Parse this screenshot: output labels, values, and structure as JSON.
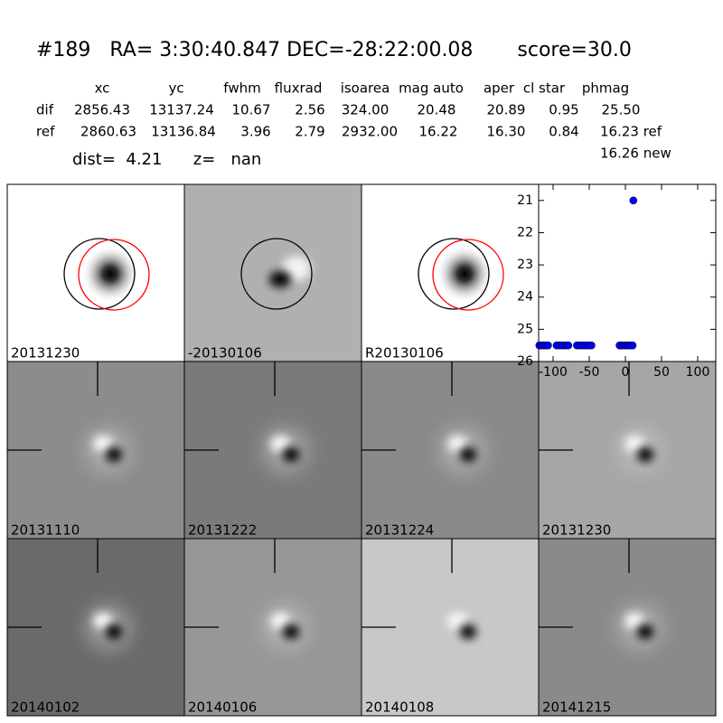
{
  "header": {
    "title": "#189   RA= 3:30:40.847 DEC=-28:22:00.08       score=30.0",
    "dist": "dist=  4.21      z=   nan"
  },
  "table": {
    "columns": [
      "xc",
      "yc",
      "fwhm",
      "fluxrad",
      "isoarea",
      "mag auto",
      "aper",
      "cl star",
      "phmag"
    ],
    "rows": [
      [
        "dif",
        "2856.43",
        "13137.24",
        "10.67",
        "2.56",
        "324.00",
        "20.48",
        "20.89",
        "0.95",
        "25.50"
      ],
      [
        "ref",
        "2860.63",
        "13136.84",
        "3.96",
        "2.79",
        "2932.00",
        "16.22",
        "16.30",
        "0.84",
        "16.23 ref"
      ]
    ],
    "extra": "16.26 new"
  },
  "panels": [
    {
      "label": "20131230",
      "color": "#000000"
    },
    {
      "label": "-20130106",
      "color": "#000000"
    },
    {
      "label": "R20130106",
      "color": "#000000"
    },
    {
      "label": "20131110",
      "color": "#000000"
    },
    {
      "label": "20131222",
      "color": "#000000"
    },
    {
      "label": "20131224",
      "color": "#000000"
    },
    {
      "label": "20131230",
      "color": "#ff0000"
    },
    {
      "label": "20140102",
      "color": "#000000"
    },
    {
      "label": "20140106",
      "color": "#000000"
    },
    {
      "label": "20140108",
      "color": "#000000"
    },
    {
      "label": "20141215",
      "color": "#000000"
    }
  ],
  "chart_data": {
    "type": "scatter",
    "color": "#0000ff",
    "x": [
      -119,
      -116,
      -113,
      -110,
      -107,
      -95,
      -91,
      -87,
      -83,
      -79,
      -67,
      -63,
      -59,
      -55,
      -51,
      -47,
      -8,
      -5,
      -2,
      1,
      4,
      7,
      10,
      11
    ],
    "y": [
      25.5,
      25.5,
      25.5,
      25.5,
      25.5,
      25.5,
      25.5,
      25.5,
      25.5,
      25.5,
      25.5,
      25.5,
      25.5,
      25.5,
      25.5,
      25.5,
      25.5,
      25.5,
      25.5,
      25.5,
      25.5,
      25.5,
      25.5,
      21
    ],
    "xlim": [
      -120,
      125
    ],
    "ylim": [
      26,
      20.5
    ],
    "xticks": [
      -100,
      -50,
      0,
      50,
      100
    ],
    "yticks": [
      21,
      22,
      23,
      24,
      25,
      26
    ]
  }
}
